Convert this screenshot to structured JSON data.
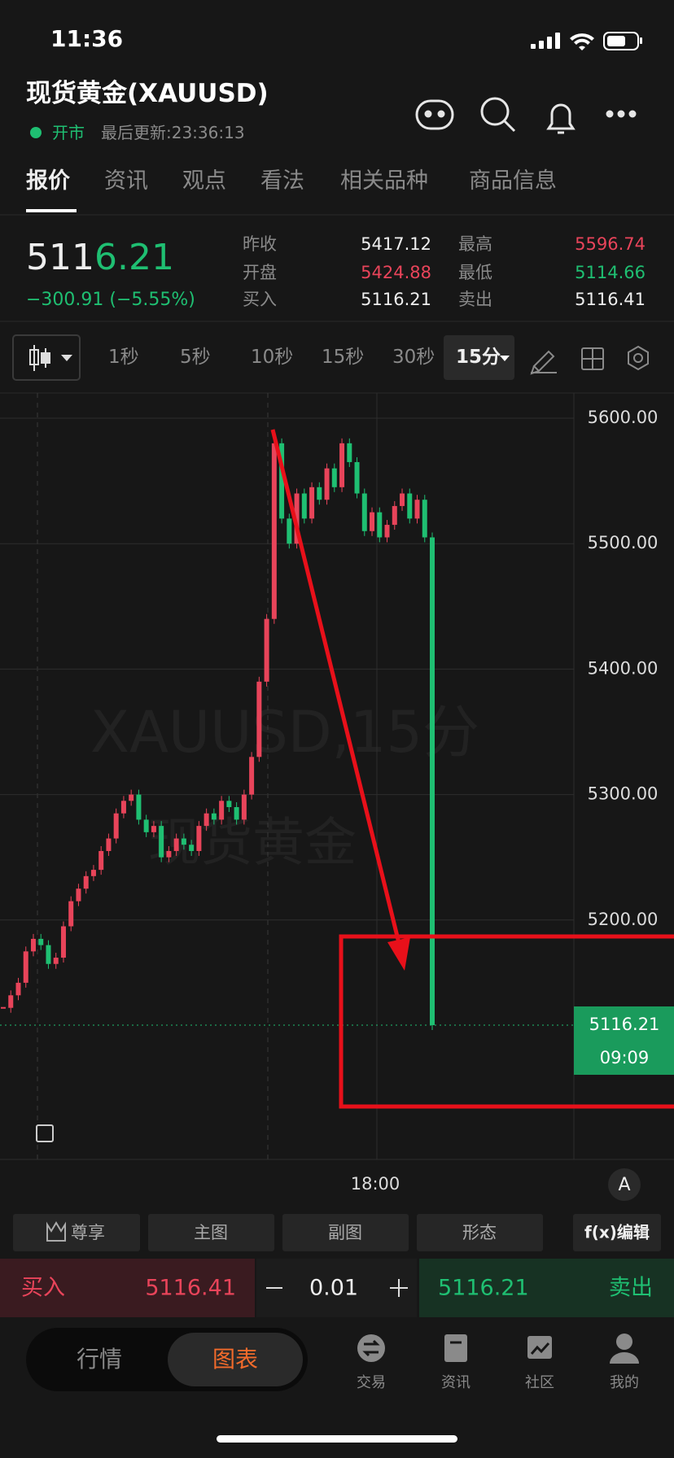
{
  "status_bar": {
    "time": "11:36"
  },
  "header": {
    "title": "现货黄金(XAUUSD)",
    "market_status": "开市",
    "last_update": "最后更新:23:36:13"
  },
  "tabs": [
    "报价",
    "资讯",
    "观点",
    "看法",
    "相关品种",
    "商品信息"
  ],
  "quote": {
    "price_main": "511",
    "price_tail": "6.21",
    "change": "−300.91 (−5.55%)",
    "stats": [
      {
        "label": "昨收",
        "value": "5417.12"
      },
      {
        "label": "开盘",
        "value": "5424.88"
      },
      {
        "label": "买入",
        "value": "5116.21"
      },
      {
        "label": "最高",
        "value": "5596.74"
      },
      {
        "label": "最低",
        "value": "5114.66"
      },
      {
        "label": "卖出",
        "value": "5116.41"
      }
    ]
  },
  "intervals": [
    "1秒",
    "5秒",
    "10秒",
    "15秒",
    "30秒",
    "15分"
  ],
  "chart": {
    "type": "candlestick",
    "watermark": [
      "XAUUSD,15分",
      "现货黄金"
    ],
    "closes": [
      5130,
      5140,
      5150,
      5175,
      5185,
      5180,
      5165,
      5170,
      5195,
      5215,
      5225,
      5235,
      5240,
      5255,
      5265,
      5285,
      5295,
      5300,
      5280,
      5270,
      5275,
      5250,
      5255,
      5265,
      5260,
      5255,
      5275,
      5285,
      5280,
      5295,
      5290,
      5280,
      5300,
      5330,
      5390,
      5440,
      5580,
      5520,
      5500,
      5540,
      5520,
      5545,
      5535,
      5560,
      5545,
      5580,
      5565,
      5540,
      5510,
      5525,
      5505,
      5515,
      5530,
      5540,
      5520,
      5535,
      5505,
      5116.21
    ],
    "ylim": [
      5009.2,
      5620.1
    ],
    "yticks": [
      {
        "value": 5600,
        "label": "5600.00"
      },
      {
        "value": 5500,
        "label": "5500.00"
      },
      {
        "value": 5400,
        "label": "5400.00"
      },
      {
        "value": 5300,
        "label": "5300.00"
      },
      {
        "value": 5200,
        "label": "5200.00"
      }
    ],
    "x_label": "18:00",
    "last_price": 5116.21,
    "countdown": "09:09",
    "scale_button": "A"
  },
  "chart_tools": [
    "尊享",
    "主图",
    "副图",
    "形态",
    "f(x)编辑"
  ],
  "trade_bar": {
    "buy_label": "买入",
    "buy_price": "5116.41",
    "lot": "0.01",
    "sell_price": "5116.21",
    "sell_label": "卖出"
  },
  "bottom_nav": {
    "segments": [
      "行情",
      "图表"
    ],
    "items": [
      "交易",
      "资讯",
      "社区",
      "我的"
    ]
  }
}
